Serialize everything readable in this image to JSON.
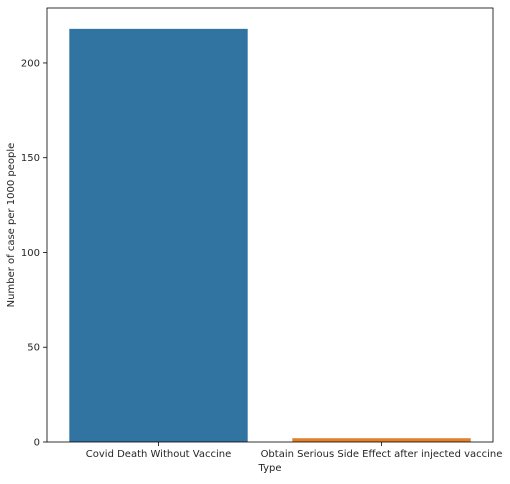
{
  "chart_data": {
    "type": "bar",
    "categories": [
      "Covid Death Without Vaccine",
      "Obtain Serious Side Effect after injected vaccine"
    ],
    "values": [
      218,
      2
    ],
    "colors": [
      "#3274a1",
      "#e1812c"
    ],
    "xlabel": "Type",
    "ylabel": "Number of case per 1000 people",
    "ylim": [
      0,
      229
    ],
    "yticks": [
      0,
      50,
      100,
      150,
      200
    ],
    "grid": false,
    "legend": false
  }
}
